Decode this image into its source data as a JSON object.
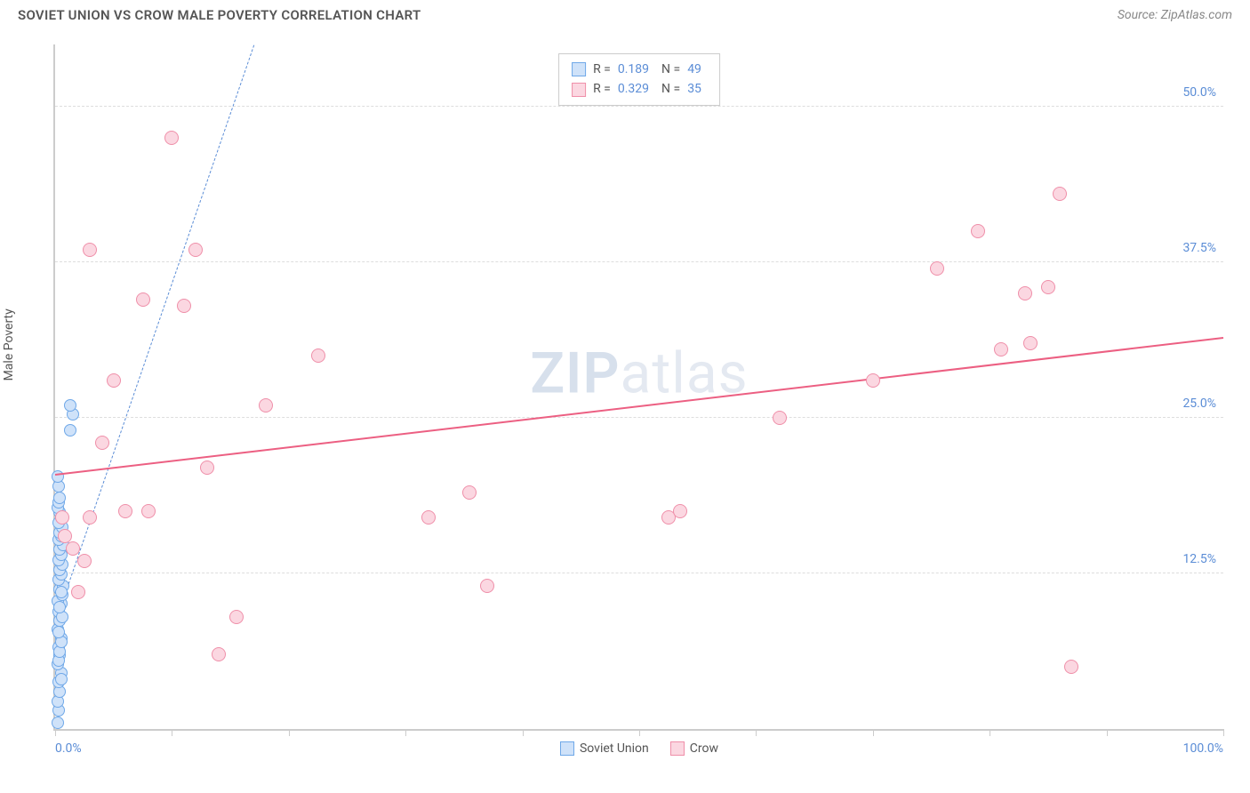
{
  "header": {
    "title": "SOVIET UNION VS CROW MALE POVERTY CORRELATION CHART",
    "source": "Source: ZipAtlas.com"
  },
  "chart": {
    "type": "scatter",
    "ylabel": "Male Poverty",
    "xlim": [
      0,
      100
    ],
    "ylim": [
      0,
      55
    ],
    "y_gridlines": [
      12.5,
      25.0,
      37.5,
      50.0
    ],
    "y_tick_labels": [
      "12.5%",
      "25.0%",
      "37.5%",
      "50.0%"
    ],
    "x_ticks": [
      0,
      10,
      20,
      30,
      40,
      50,
      60,
      70,
      80,
      90,
      100
    ],
    "x_tick_labels": {
      "0": "0.0%",
      "100": "100.0%"
    },
    "background_color": "#ffffff",
    "grid_color": "#dddddd",
    "axis_color": "#cccccc",
    "tick_label_color": "#5b8dd6",
    "label_color": "#555555",
    "watermark": {
      "part1": "ZIP",
      "part2": "atlas"
    },
    "legend_top": [
      {
        "swatch_fill": "#cfe2f9",
        "swatch_border": "#6fa8e8",
        "r_label": "R =",
        "r": "0.189",
        "n_label": "N =",
        "n": "49"
      },
      {
        "swatch_fill": "#fbd7e1",
        "swatch_border": "#ef8fa9",
        "r_label": "R =",
        "r": "0.329",
        "n_label": "N =",
        "n": "35"
      }
    ],
    "legend_bottom": [
      {
        "swatch_fill": "#cfe2f9",
        "swatch_border": "#6fa8e8",
        "label": "Soviet Union"
      },
      {
        "swatch_fill": "#fbd7e1",
        "swatch_border": "#ef8fa9",
        "label": "Crow"
      }
    ],
    "series": [
      {
        "name": "Soviet Union",
        "marker_fill": "#cfe2f9",
        "marker_border": "#6fa8e8",
        "marker_size": 14,
        "trend": {
          "type": "dashed",
          "color": "#5b8dd6",
          "x1": 0.5,
          "y1": 10,
          "x2": 17,
          "y2": 55
        },
        "points": [
          {
            "x": 0.2,
            "y": 0.5
          },
          {
            "x": 0.3,
            "y": 1.5
          },
          {
            "x": 0.2,
            "y": 2.2
          },
          {
            "x": 0.4,
            "y": 3.0
          },
          {
            "x": 0.3,
            "y": 3.8
          },
          {
            "x": 0.5,
            "y": 4.5
          },
          {
            "x": 0.2,
            "y": 5.2
          },
          {
            "x": 0.4,
            "y": 5.9
          },
          {
            "x": 0.3,
            "y": 6.6
          },
          {
            "x": 0.5,
            "y": 7.3
          },
          {
            "x": 0.2,
            "y": 8.0
          },
          {
            "x": 0.4,
            "y": 8.7
          },
          {
            "x": 0.3,
            "y": 9.4
          },
          {
            "x": 0.5,
            "y": 10.1
          },
          {
            "x": 0.2,
            "y": 10.3
          },
          {
            "x": 0.6,
            "y": 10.8
          },
          {
            "x": 0.4,
            "y": 11.2
          },
          {
            "x": 0.7,
            "y": 11.5
          },
          {
            "x": 0.3,
            "y": 12.0
          },
          {
            "x": 0.5,
            "y": 12.4
          },
          {
            "x": 0.4,
            "y": 12.8
          },
          {
            "x": 0.6,
            "y": 13.2
          },
          {
            "x": 0.3,
            "y": 13.6
          },
          {
            "x": 0.5,
            "y": 14.0
          },
          {
            "x": 0.4,
            "y": 14.4
          },
          {
            "x": 0.7,
            "y": 14.8
          },
          {
            "x": 0.3,
            "y": 15.2
          },
          {
            "x": 0.5,
            "y": 15.5
          },
          {
            "x": 0.4,
            "y": 15.8
          },
          {
            "x": 0.6,
            "y": 16.2
          },
          {
            "x": 0.3,
            "y": 16.6
          },
          {
            "x": 0.5,
            "y": 17.0
          },
          {
            "x": 0.4,
            "y": 17.4
          },
          {
            "x": 0.2,
            "y": 17.8
          },
          {
            "x": 0.3,
            "y": 18.2
          },
          {
            "x": 0.4,
            "y": 18.6
          },
          {
            "x": 0.3,
            "y": 19.5
          },
          {
            "x": 0.2,
            "y": 20.3
          },
          {
            "x": 1.3,
            "y": 24.0
          },
          {
            "x": 1.5,
            "y": 25.3
          },
          {
            "x": 1.3,
            "y": 26.0
          },
          {
            "x": 0.5,
            "y": 4.0
          },
          {
            "x": 0.3,
            "y": 5.5
          },
          {
            "x": 0.4,
            "y": 6.2
          },
          {
            "x": 0.5,
            "y": 7.0
          },
          {
            "x": 0.3,
            "y": 7.8
          },
          {
            "x": 0.6,
            "y": 9.0
          },
          {
            "x": 0.4,
            "y": 9.8
          },
          {
            "x": 0.5,
            "y": 11.0
          }
        ]
      },
      {
        "name": "Crow",
        "marker_fill": "#fbd7e1",
        "marker_border": "#ef8fa9",
        "marker_size": 16,
        "trend": {
          "type": "solid",
          "color": "#ec5f82",
          "x1": 0,
          "y1": 20.5,
          "x2": 100,
          "y2": 31.5
        },
        "points": [
          {
            "x": 0.8,
            "y": 15.5
          },
          {
            "x": 1.5,
            "y": 14.5
          },
          {
            "x": 2.0,
            "y": 11.0
          },
          {
            "x": 2.5,
            "y": 13.5
          },
          {
            "x": 3.0,
            "y": 17.0
          },
          {
            "x": 3.0,
            "y": 38.5
          },
          {
            "x": 4.0,
            "y": 23.0
          },
          {
            "x": 5.0,
            "y": 28.0
          },
          {
            "x": 6.0,
            "y": 17.5
          },
          {
            "x": 7.5,
            "y": 34.5
          },
          {
            "x": 8.0,
            "y": 17.5
          },
          {
            "x": 10.0,
            "y": 47.5
          },
          {
            "x": 11.0,
            "y": 34.0
          },
          {
            "x": 12.0,
            "y": 38.5
          },
          {
            "x": 13.0,
            "y": 21.0
          },
          {
            "x": 14.0,
            "y": 6.0
          },
          {
            "x": 15.5,
            "y": 9.0
          },
          {
            "x": 18.0,
            "y": 26.0
          },
          {
            "x": 22.5,
            "y": 30.0
          },
          {
            "x": 32.0,
            "y": 17.0
          },
          {
            "x": 35.5,
            "y": 19.0
          },
          {
            "x": 37.0,
            "y": 11.5
          },
          {
            "x": 52.5,
            "y": 17.0
          },
          {
            "x": 62.0,
            "y": 25.0
          },
          {
            "x": 70.0,
            "y": 28.0
          },
          {
            "x": 75.5,
            "y": 37.0
          },
          {
            "x": 79.0,
            "y": 40.0
          },
          {
            "x": 81.0,
            "y": 30.5
          },
          {
            "x": 83.5,
            "y": 31.0
          },
          {
            "x": 85.0,
            "y": 35.5
          },
          {
            "x": 86.0,
            "y": 43.0
          },
          {
            "x": 87.0,
            "y": 5.0
          },
          {
            "x": 83.0,
            "y": 35.0
          },
          {
            "x": 53.5,
            "y": 17.5
          },
          {
            "x": 0.6,
            "y": 17.0
          }
        ]
      }
    ]
  }
}
